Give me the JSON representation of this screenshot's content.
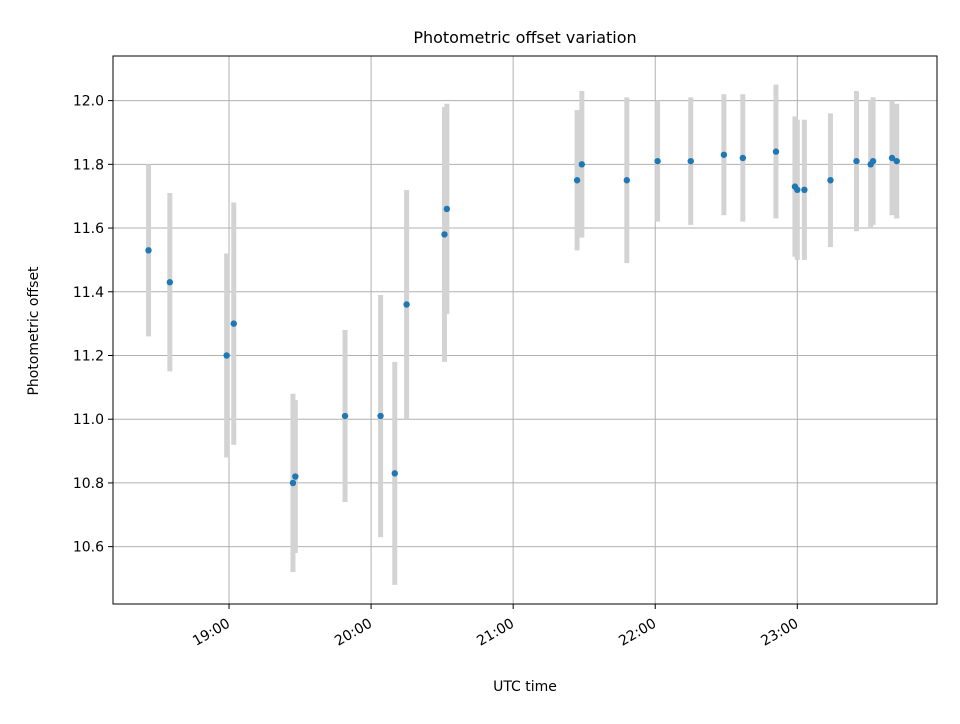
{
  "chart_data": {
    "type": "scatter",
    "title": "Photometric offset variation",
    "xlabel": "UTC time",
    "ylabel": "Photometric offset",
    "x_is_time": true,
    "xlim": [
      "18:11",
      "23:59"
    ],
    "ylim": [
      10.42,
      12.14
    ],
    "x_ticks": [
      "19:00",
      "20:00",
      "21:00",
      "22:00",
      "23:00"
    ],
    "y_ticks": [
      10.6,
      10.8,
      11.0,
      11.2,
      11.4,
      11.6,
      11.8,
      12.0
    ],
    "y_tick_labels": [
      "10.6",
      "10.8",
      "11.0",
      "11.2",
      "11.4",
      "11.6",
      "11.8",
      "12.0"
    ],
    "grid": true,
    "colors": {
      "point": "#1f77b4",
      "errorbar": "#d3d3d3",
      "grid": "#b0b0b0"
    },
    "series": [
      {
        "points": [
          {
            "x": "18:26",
            "y": 11.53,
            "err": 0.27
          },
          {
            "x": "18:35",
            "y": 11.43,
            "err": 0.28
          },
          {
            "x": "18:59",
            "y": 11.2,
            "err": 0.32
          },
          {
            "x": "19:02",
            "y": 11.3,
            "err": 0.38
          },
          {
            "x": "19:27",
            "y": 10.8,
            "err": 0.28
          },
          {
            "x": "19:28",
            "y": 10.82,
            "err": 0.24
          },
          {
            "x": "19:49",
            "y": 11.01,
            "err": 0.27
          },
          {
            "x": "20:04",
            "y": 11.01,
            "err": 0.38
          },
          {
            "x": "20:10",
            "y": 10.83,
            "err": 0.35
          },
          {
            "x": "20:15",
            "y": 11.36,
            "err": 0.36
          },
          {
            "x": "20:31",
            "y": 11.58,
            "err": 0.4
          },
          {
            "x": "20:32",
            "y": 11.66,
            "err": 0.33
          },
          {
            "x": "21:27",
            "y": 11.75,
            "err": 0.22
          },
          {
            "x": "21:29",
            "y": 11.8,
            "err": 0.23
          },
          {
            "x": "21:48",
            "y": 11.75,
            "err": 0.26
          },
          {
            "x": "22:01",
            "y": 11.81,
            "err": 0.19
          },
          {
            "x": "22:15",
            "y": 11.81,
            "err": 0.2
          },
          {
            "x": "22:29",
            "y": 11.83,
            "err": 0.19
          },
          {
            "x": "22:37",
            "y": 11.82,
            "err": 0.2
          },
          {
            "x": "22:51",
            "y": 11.84,
            "err": 0.21
          },
          {
            "x": "22:59",
            "y": 11.73,
            "err": 0.22
          },
          {
            "x": "23:00",
            "y": 11.72,
            "err": 0.22
          },
          {
            "x": "23:03",
            "y": 11.72,
            "err": 0.22
          },
          {
            "x": "23:14",
            "y": 11.75,
            "err": 0.21
          },
          {
            "x": "23:25",
            "y": 11.81,
            "err": 0.22
          },
          {
            "x": "23:31",
            "y": 11.8,
            "err": 0.2
          },
          {
            "x": "23:32",
            "y": 11.81,
            "err": 0.2
          },
          {
            "x": "23:40",
            "y": 11.82,
            "err": 0.18
          },
          {
            "x": "23:42",
            "y": 11.81,
            "err": 0.18
          }
        ]
      }
    ]
  }
}
